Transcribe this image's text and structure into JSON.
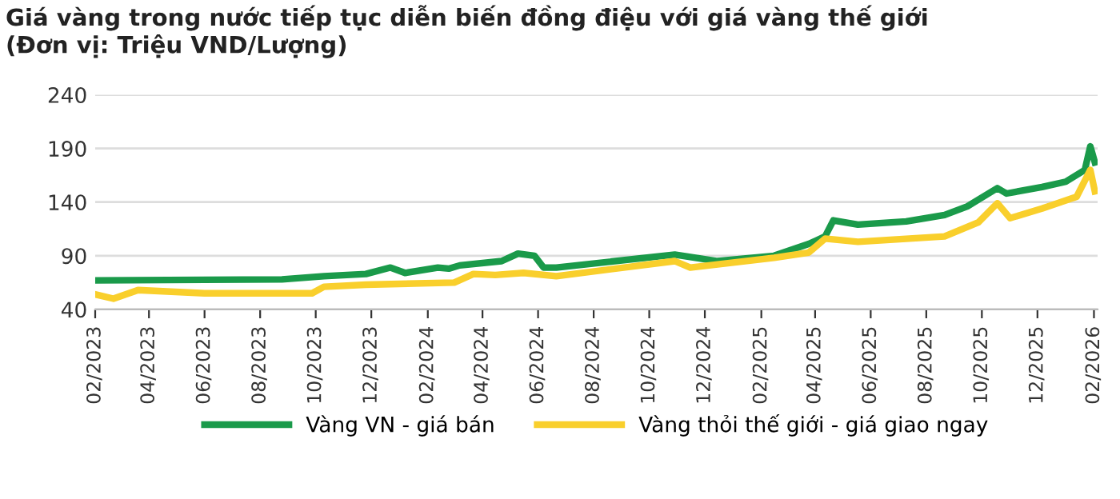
{
  "chart_data": {
    "type": "line",
    "title": "Giá vàng trong nước tiếp tục diễn biến đồng điệu với giá vàng thế giới\n(Đơn vị: Triệu VND/Lượng)",
    "series": [
      {
        "name": "Vàng VN - giá bán",
        "color": "#1a9a4a",
        "x": [
          "2023-02-01",
          "2023-08-25",
          "2023-10-10",
          "2023-11-25",
          "2023-12-22",
          "2024-01-07",
          "2024-02-12",
          "2024-02-24",
          "2024-03-07",
          "2024-04-22",
          "2024-05-10",
          "2024-05-28",
          "2024-06-07",
          "2024-06-21",
          "2024-10-29",
          "2024-12-15",
          "2025-02-15",
          "2025-03-25",
          "2025-04-12",
          "2025-04-21",
          "2025-05-18",
          "2025-07-10",
          "2025-08-21",
          "2025-09-15",
          "2025-10-18",
          "2025-10-28",
          "2025-12-06",
          "2026-01-01",
          "2026-01-22",
          "2026-01-28",
          "2026-02-02"
        ],
        "values": [
          67,
          68,
          71,
          73,
          79,
          74,
          79,
          78,
          81,
          85,
          92,
          90,
          79,
          79,
          91,
          85,
          90,
          101,
          108,
          123,
          119,
          122,
          128,
          136,
          153,
          148,
          154,
          159,
          170,
          192,
          177
        ]
      },
      {
        "name": "Vàng thỏi thế giới - giá giao ngay",
        "color": "#f9cf2c",
        "x": [
          "2023-02-01",
          "2023-02-21",
          "2023-03-20",
          "2023-06-01",
          "2023-09-27",
          "2023-10-10",
          "2023-11-25",
          "2024-03-01",
          "2024-03-22",
          "2024-04-15",
          "2024-05-16",
          "2024-06-21",
          "2024-10-29",
          "2024-11-15",
          "2025-02-15",
          "2025-03-25",
          "2025-04-12",
          "2025-05-18",
          "2025-08-21",
          "2025-09-27",
          "2025-10-18",
          "2025-11-01",
          "2025-12-06",
          "2026-01-13",
          "2026-01-28",
          "2026-02-02"
        ],
        "values": [
          54,
          50,
          58,
          55,
          55,
          61,
          63,
          65,
          73,
          72,
          74,
          71,
          85,
          79,
          88,
          93,
          106,
          103,
          108,
          121,
          139,
          125,
          134,
          145,
          170,
          150
        ]
      }
    ],
    "xlim": [
      "2023-02-01",
      "2026-02-05"
    ],
    "xticks": [
      {
        "value": "2023-02-01",
        "label": "02/2023"
      },
      {
        "value": "2023-04-01",
        "label": "04/2023"
      },
      {
        "value": "2023-06-01",
        "label": "06/2023"
      },
      {
        "value": "2023-08-01",
        "label": "08/2023"
      },
      {
        "value": "2023-10-01",
        "label": "10/2023"
      },
      {
        "value": "2023-12-01",
        "label": "12/2023"
      },
      {
        "value": "2024-02-01",
        "label": "02/2024"
      },
      {
        "value": "2024-04-01",
        "label": "04/2024"
      },
      {
        "value": "2024-06-01",
        "label": "06/2024"
      },
      {
        "value": "2024-08-01",
        "label": "08/2024"
      },
      {
        "value": "2024-10-01",
        "label": "10/2024"
      },
      {
        "value": "2024-12-01",
        "label": "12/2024"
      },
      {
        "value": "2025-02-01",
        "label": "02/2025"
      },
      {
        "value": "2025-04-01",
        "label": "04/2025"
      },
      {
        "value": "2025-06-01",
        "label": "06/2025"
      },
      {
        "value": "2025-08-01",
        "label": "08/2025"
      },
      {
        "value": "2025-10-01",
        "label": "10/2025"
      },
      {
        "value": "2025-12-01",
        "label": "12/2025"
      },
      {
        "value": "2026-02-01",
        "label": "02/2026"
      }
    ],
    "ylim": [
      40,
      240
    ],
    "yticks": [
      40,
      90,
      140,
      190,
      240
    ],
    "grid": "y",
    "legend": "bottom",
    "marker": "none",
    "line_style": "solid"
  }
}
